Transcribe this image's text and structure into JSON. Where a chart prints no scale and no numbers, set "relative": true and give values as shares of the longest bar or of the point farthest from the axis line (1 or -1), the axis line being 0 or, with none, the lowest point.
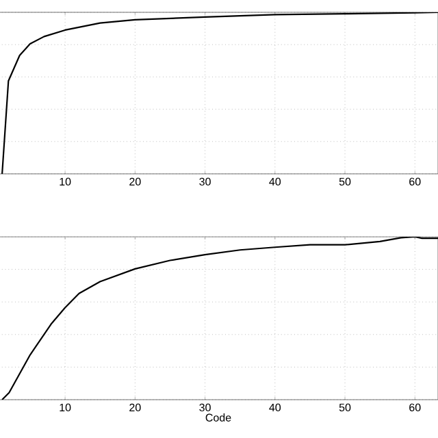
{
  "chart_data": [
    {
      "type": "line",
      "relative": true,
      "grid": true,
      "tick_labels": "x",
      "xlim": [
        0.5,
        63.3
      ],
      "xticks": [
        10,
        20,
        30,
        40,
        50,
        60
      ],
      "x": [
        1,
        1.9,
        3.5,
        5,
        7,
        10,
        15,
        20,
        30,
        40,
        50,
        60,
        63.3
      ],
      "series": [
        {
          "color": "#000000",
          "values": [
            0,
            0.575,
            0.733,
            0.805,
            0.85,
            0.89,
            0.934,
            0.954,
            0.971,
            0.986,
            0.991,
            0.997,
            1
          ]
        }
      ]
    },
    {
      "type": "line",
      "relative": true,
      "grid": true,
      "tick_labels": "x",
      "xlabel": "Code",
      "xlim": [
        0.5,
        63.3
      ],
      "xticks": [
        10,
        20,
        30,
        40,
        50,
        60
      ],
      "x": [
        1,
        2,
        5,
        8,
        10,
        12,
        15,
        20,
        25,
        30,
        35,
        40,
        45,
        50,
        55,
        58,
        60,
        61,
        63.3
      ],
      "series": [
        {
          "color": "#000000",
          "values": [
            0,
            0.043,
            0.275,
            0.464,
            0.565,
            0.652,
            0.725,
            0.803,
            0.855,
            0.89,
            0.919,
            0.936,
            0.951,
            0.951,
            0.971,
            0.994,
            1,
            0.991,
            0.991
          ]
        }
      ]
    }
  ]
}
